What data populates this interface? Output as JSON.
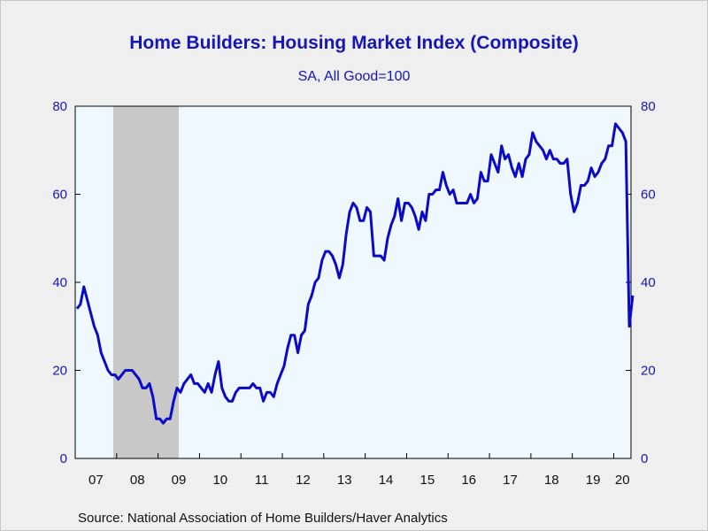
{
  "title": "Home Builders: Housing Market Index (Composite)",
  "subtitle": "SA, All Good=100",
  "source": "Source:  National Association of Home Builders/Haver Analytics",
  "colors": {
    "line": "#0a0ac8",
    "plot_bg": "#f0f8ff",
    "recession": "#c8c8c8",
    "text": "#1616b4"
  },
  "chart_data": {
    "type": "line",
    "title": "Home Builders: Housing Market Index (Composite)",
    "subtitle": "SA, All Good=100",
    "ylim": [
      0,
      80
    ],
    "y_ticks": [
      0,
      20,
      40,
      60,
      80
    ],
    "x_tick_labels": [
      "07",
      "08",
      "09",
      "10",
      "11",
      "12",
      "13",
      "14",
      "15",
      "16",
      "17",
      "18",
      "19",
      "20"
    ],
    "x_range": [
      "2007-01",
      "2020-05"
    ],
    "dual_y_axis": true,
    "grid": false,
    "recession_shading": {
      "start": "2007-12",
      "end": "2009-06"
    },
    "series": [
      {
        "x_start": "2007-01",
        "frequency": "monthly",
        "values": [
          34,
          35,
          39,
          36,
          33,
          30,
          28,
          24,
          22,
          20,
          19,
          19,
          18,
          19,
          20,
          20,
          20,
          19,
          18,
          16,
          16,
          17,
          14,
          9,
          9,
          8,
          9,
          9,
          13,
          16,
          15,
          17,
          18,
          19,
          17,
          17,
          16,
          15,
          17,
          15,
          19,
          22,
          16,
          14,
          13,
          13,
          15,
          16,
          16,
          16,
          16,
          17,
          16,
          16,
          13,
          15,
          15,
          14,
          17,
          19,
          21,
          25,
          28,
          28,
          24,
          28,
          29,
          35,
          37,
          40,
          41,
          45,
          47,
          47,
          46,
          44,
          41,
          44,
          51,
          56,
          58,
          57,
          54,
          54,
          57,
          56,
          46,
          46,
          46,
          45,
          50,
          53,
          55,
          59,
          54,
          58,
          58,
          57,
          55,
          52,
          56,
          54,
          60,
          60,
          61,
          61,
          65,
          62,
          60,
          61,
          58,
          58,
          58,
          58,
          60,
          58,
          59,
          65,
          63,
          63,
          69,
          67,
          65,
          71,
          68,
          69,
          66,
          64,
          67,
          64,
          68,
          69,
          74,
          72,
          71,
          70,
          68,
          70,
          68,
          68,
          67,
          67,
          68,
          60,
          56,
          58,
          62,
          62,
          63,
          66,
          64,
          65,
          67,
          68,
          71,
          71,
          76,
          75,
          74,
          72,
          30,
          37
        ]
      }
    ]
  }
}
